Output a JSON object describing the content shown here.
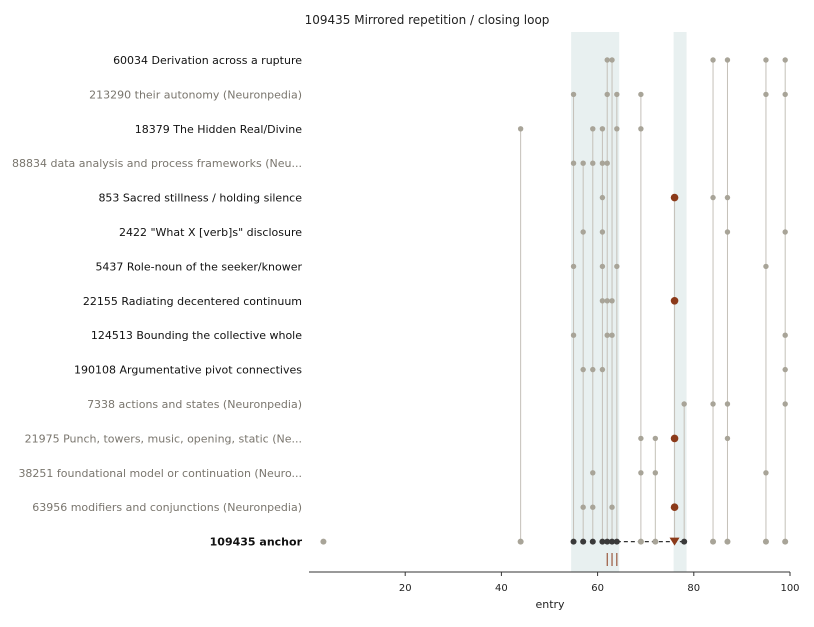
{
  "chart_data": {
    "type": "scatter",
    "title": "109435  Mirrored repetition / closing loop",
    "xlabel": "entry",
    "xlim": [
      0,
      100
    ],
    "xticks": [
      20,
      40,
      60,
      80,
      100
    ],
    "bands": [
      [
        54.5,
        64.5
      ],
      [
        75.8,
        78.5
      ]
    ],
    "colors": {
      "band": "#e8f0f0",
      "dot": "#a8a498",
      "stem": "#c4c0b8",
      "highlight": "#8b3a1a",
      "anchor_dot": "#3a3a3a",
      "label_strong": "#111111",
      "label_muted": "#7a766e"
    },
    "rows": [
      {
        "label": "60034  Derivation across a rupture",
        "muted": false,
        "x": [
          62,
          63,
          84,
          87,
          95,
          99
        ],
        "highlight": []
      },
      {
        "label": "213290  their autonomy (Neuronpedia)",
        "muted": true,
        "x": [
          55,
          62,
          64,
          69,
          95,
          99
        ],
        "highlight": []
      },
      {
        "label": "18379  The Hidden Real/Divine",
        "muted": false,
        "x": [
          44,
          59,
          61,
          64,
          69
        ],
        "highlight": []
      },
      {
        "label": "88834  data analysis and process frameworks (Neu...",
        "muted": true,
        "x": [
          55,
          57,
          59,
          61,
          62
        ],
        "highlight": []
      },
      {
        "label": "853  Sacred stillness / holding silence",
        "muted": false,
        "x": [
          61,
          76,
          84,
          87
        ],
        "highlight": [
          76
        ]
      },
      {
        "label": "2422  \"What X [verb]s\" disclosure",
        "muted": false,
        "x": [
          57,
          61,
          87,
          99
        ],
        "highlight": []
      },
      {
        "label": "5437  Role-noun of the seeker/knower",
        "muted": false,
        "x": [
          55,
          61,
          64,
          95
        ],
        "highlight": []
      },
      {
        "label": "22155  Radiating decentered continuum",
        "muted": false,
        "x": [
          61,
          62,
          63,
          76
        ],
        "highlight": [
          76
        ]
      },
      {
        "label": "124513  Bounding the collective whole",
        "muted": false,
        "x": [
          55,
          62,
          63,
          99
        ],
        "highlight": []
      },
      {
        "label": "190108  Argumentative pivot connectives",
        "muted": false,
        "x": [
          57,
          59,
          61,
          99
        ],
        "highlight": []
      },
      {
        "label": "7338  actions and states (Neuronpedia)",
        "muted": true,
        "x": [
          78,
          84,
          87,
          99
        ],
        "highlight": []
      },
      {
        "label": "21975  Punch, towers, music, opening, static (Ne...",
        "muted": true,
        "x": [
          69,
          72,
          76,
          87
        ],
        "highlight": [
          76
        ]
      },
      {
        "label": "38251  foundational model or continuation (Neuro...",
        "muted": true,
        "x": [
          59,
          69,
          72,
          95
        ],
        "highlight": []
      },
      {
        "label": "63956  modifiers and conjunctions (Neuronpedia)",
        "muted": true,
        "x": [
          57,
          59,
          63,
          76
        ],
        "highlight": [
          76
        ]
      }
    ],
    "anchor": {
      "label": "109435  anchor",
      "dark_x": [
        55,
        57,
        59,
        61,
        62,
        63,
        64
      ],
      "light_x": [
        3,
        44,
        69,
        72,
        84,
        87,
        95,
        99
      ],
      "triangle_x": 76,
      "end_x": 78,
      "dash_from": 64,
      "dash_to": 78,
      "rug_x": [
        62,
        63,
        64
      ]
    }
  }
}
